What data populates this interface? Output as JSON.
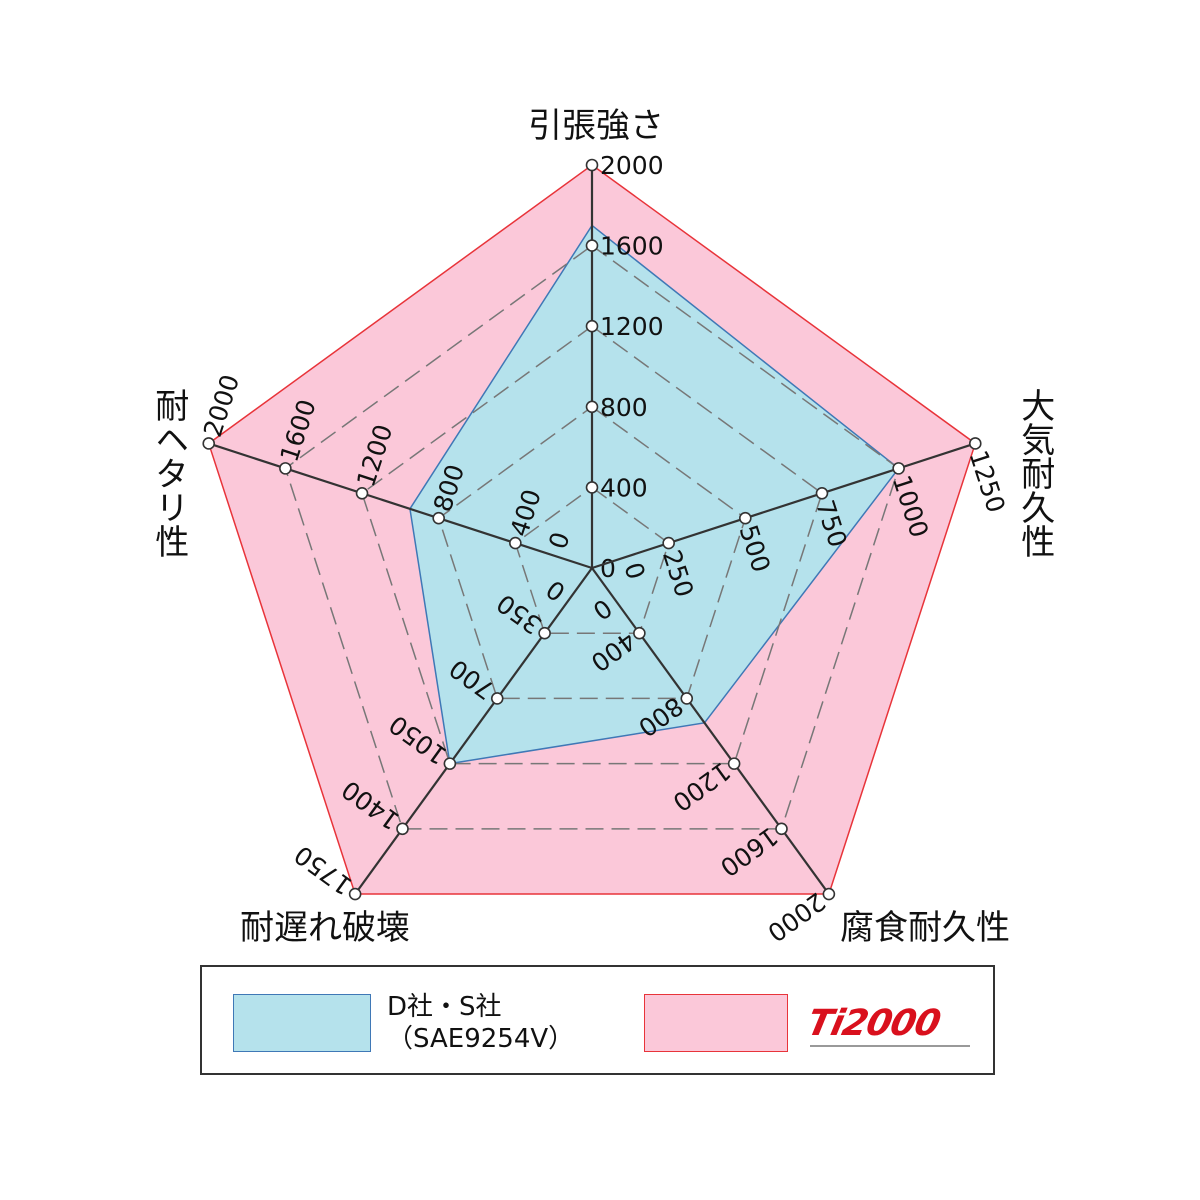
{
  "chart_data": {
    "type": "radar",
    "axes": [
      {
        "label": "引張強さ",
        "ticks": [
          "0",
          "400",
          "800",
          "1200",
          "1600",
          "2000"
        ],
        "max": 2000
      },
      {
        "label": "大気耐久性",
        "ticks": [
          "0",
          "250",
          "500",
          "750",
          "1000",
          "1250"
        ],
        "max": 1250
      },
      {
        "label": "腐食耐久性",
        "ticks": [
          "0",
          "400",
          "800",
          "1200",
          "1600",
          "2000"
        ],
        "max": 2000
      },
      {
        "label": "耐遅れ破壊",
        "ticks": [
          "0",
          "350",
          "700",
          "1050",
          "1400",
          "1750"
        ],
        "max": 1750
      },
      {
        "label": "耐ヘタリ性",
        "ticks": [
          "0",
          "400",
          "800",
          "1200",
          "1600",
          "2000"
        ],
        "max": 2000
      }
    ],
    "series": [
      {
        "name": "D社・S社 (SAE9254V)",
        "values": [
          1700,
          1000,
          950,
          1050,
          950
        ],
        "fill": "#b5e2ec",
        "stroke": "#3f78b6"
      },
      {
        "name": "Ti2000",
        "values": [
          2000,
          1250,
          2000,
          1750,
          2000
        ],
        "fill": "#fbc8d9",
        "stroke": "#e8343a"
      }
    ],
    "grid": "dashed pentagons"
  },
  "legend": {
    "a_line1": "D社・S社",
    "a_line2": "（SAE9254V）",
    "b_logo": "Ti2000"
  }
}
